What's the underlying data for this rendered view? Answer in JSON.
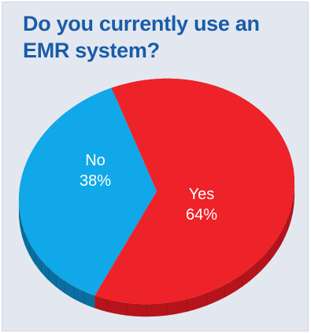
{
  "title": "Do you currently use an EMR system?",
  "colors": {
    "background": "#e3e8f0",
    "title": "#1a5ca8",
    "yes_top": "#ee2229",
    "yes_side": "#b5141b",
    "no_top": "#10a8e8",
    "no_side": "#0a6fa0",
    "label": "#ffffff"
  },
  "chart_data": {
    "type": "pie",
    "title": "Do you currently use an EMR system?",
    "slices": [
      {
        "label": "Yes",
        "value": 64,
        "display": "64%"
      },
      {
        "label": "No",
        "value": 38,
        "display": "38%"
      }
    ],
    "style": "3d-tilted",
    "legend": "none"
  }
}
